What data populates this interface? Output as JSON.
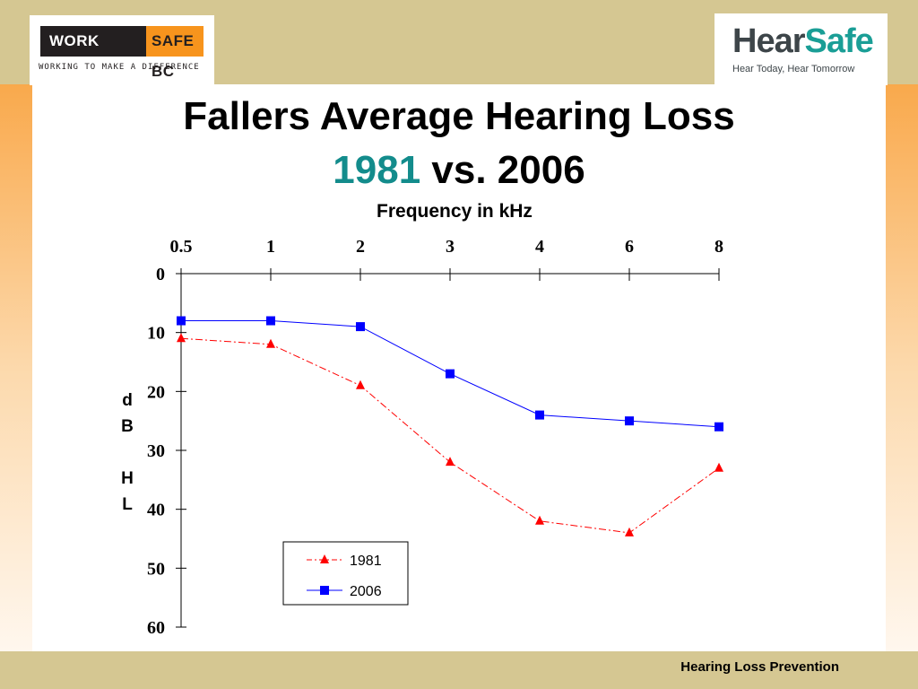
{
  "header": {
    "left_logo": {
      "brand_dark": "WORK",
      "brand_mid": "SAFE",
      "brand_end": "BC",
      "tagline": "WORKING TO MAKE A DIFFERENCE"
    },
    "right_logo": {
      "name_part1": "Hear",
      "name_part2": "Safe",
      "tagline": "Hear Today, Hear Tomorrow"
    }
  },
  "title": {
    "line1": "Fallers Average Hearing Loss",
    "line2_highlight": "1981",
    "line2_rest": " vs. 2006"
  },
  "footer": {
    "text": "Hearing Loss Prevention"
  },
  "colors": {
    "series_1981": "#ff0000",
    "series_2006": "#0000ff",
    "band": "#d5c792",
    "accent": "#138c8c"
  },
  "chart_data": {
    "type": "line",
    "xlabel": "Frequency in kHz",
    "ylabel": "dB HL",
    "categories": [
      "0.5",
      "1",
      "2",
      "3",
      "4",
      "6",
      "8"
    ],
    "y_ticks": [
      0,
      10,
      20,
      30,
      40,
      50,
      60
    ],
    "ylim": [
      0,
      60
    ],
    "y_inverted": true,
    "x_axis_position": "top",
    "grid": false,
    "legend_position": "lower-center",
    "series": [
      {
        "name": "1981",
        "values": [
          11,
          12,
          19,
          32,
          42,
          44,
          33
        ],
        "marker": "triangle",
        "line_style": "dash-dot",
        "color": "#ff0000"
      },
      {
        "name": "2006",
        "values": [
          8,
          8,
          9,
          17,
          24,
          25,
          26
        ],
        "marker": "square",
        "line_style": "solid",
        "color": "#0000ff"
      }
    ]
  }
}
